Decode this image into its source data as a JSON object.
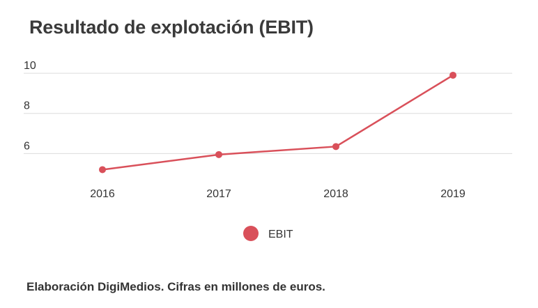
{
  "chart_data": {
    "type": "line",
    "title": "Resultado de explotación (EBIT)",
    "categories": [
      "2016",
      "2017",
      "2018",
      "2019"
    ],
    "series": [
      {
        "name": "EBIT",
        "values": [
          5.2,
          5.95,
          6.35,
          9.9
        ],
        "color": "#d9505a"
      }
    ],
    "y_ticks": [
      6,
      8,
      10
    ],
    "ylim": [
      4.8,
      10.35
    ],
    "grid": true,
    "legend_position": "bottom",
    "xlabel": "",
    "ylabel": ""
  },
  "footer": "Elaboración DigiMedios. Cifras en millones de euros."
}
